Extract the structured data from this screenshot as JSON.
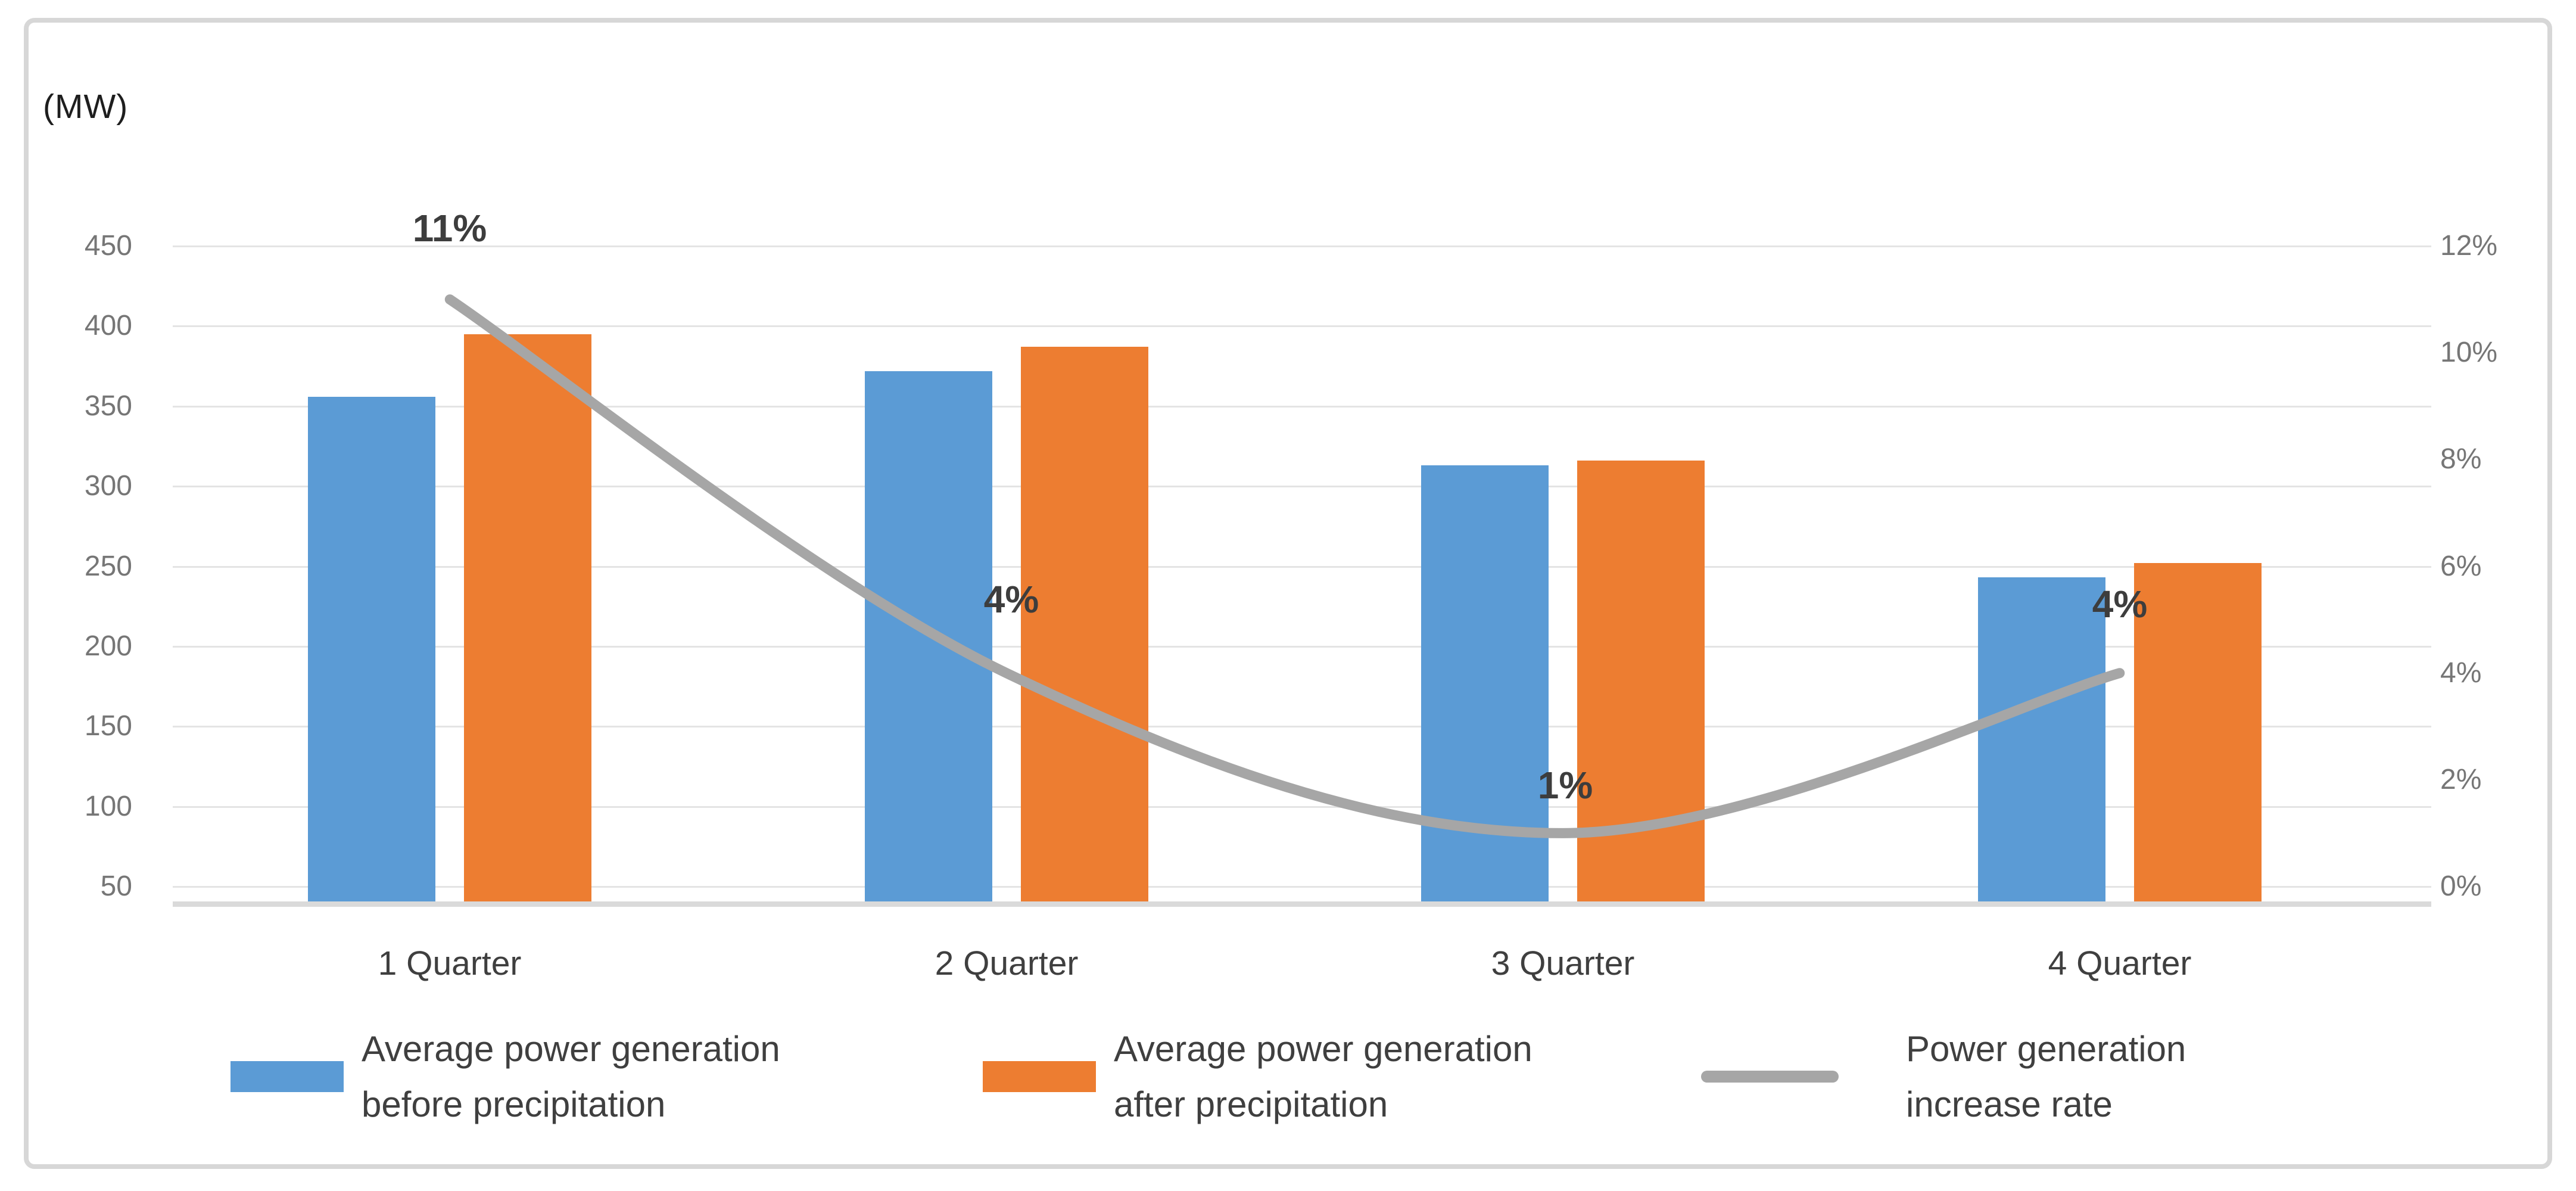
{
  "unit_label": "(MW)",
  "chart_data": {
    "type": "bar+line combo",
    "categories": [
      "1 Quarter",
      "2 Quarter",
      "3 Quarter",
      "4 Quarter"
    ],
    "series": [
      {
        "name": "Average power generation before precipitation",
        "type": "bar",
        "color": "#5B9BD5",
        "yaxis": "left",
        "values": [
          356,
          372,
          313,
          243
        ]
      },
      {
        "name": "Average power generation after precipitation",
        "type": "bar",
        "color": "#ED7D31",
        "yaxis": "left",
        "values": [
          395,
          387,
          316,
          252
        ]
      },
      {
        "name": "Power generation increase rate",
        "type": "line",
        "color": "#A6A6A6",
        "yaxis": "right",
        "values_percent": [
          11,
          4,
          1,
          4
        ],
        "point_labels": [
          "11%",
          "4%",
          "1%",
          "4%"
        ]
      }
    ],
    "left_axis": {
      "unit": "(MW)",
      "ticks": [
        450,
        400,
        350,
        300,
        250,
        200,
        150,
        100,
        50
      ],
      "range_min": 40,
      "range_max": 450,
      "gridlines": true
    },
    "right_axis": {
      "ticks": [
        "12%",
        "10%",
        "8%",
        "6%",
        "4%",
        "2%",
        "0%"
      ],
      "range_min": 0,
      "range_max": 12
    },
    "legend_position": "bottom"
  },
  "legend": {
    "items": [
      {
        "line1": "Average power generation",
        "line2": "before precipitation",
        "color": "#5B9BD5",
        "marker": "rect"
      },
      {
        "line1": "Average power generation",
        "line2": "after precipitation",
        "color": "#ED7D31",
        "marker": "rect"
      },
      {
        "line1": "Power generation",
        "line2": "increase rate",
        "color": "#A6A6A6",
        "marker": "line"
      }
    ]
  },
  "colors": {
    "bar_before": "#5B9BD5",
    "bar_after": "#ED7D31",
    "rate_line": "#A6A6A6",
    "gridline": "#E4E4E4",
    "axis_line": "#DADADA",
    "tick_label": "#767676",
    "category_label": "#3F3F3F",
    "data_label": "#3D3D3D",
    "card_border": "#D7D7D7",
    "background": "#FFFFFF"
  }
}
